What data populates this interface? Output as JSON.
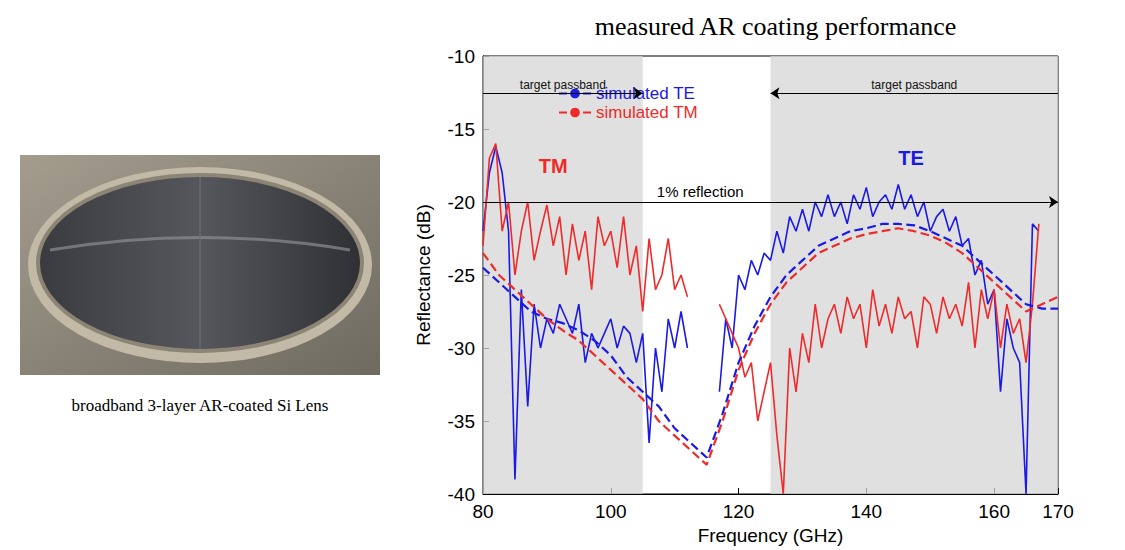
{
  "image_caption": "broadband 3-layer AR-coated Si Lens",
  "chart_data": {
    "type": "line",
    "title": "measured AR coating performance",
    "x_label": "Frequency (GHz)",
    "y_label": "Reflectance (dB)",
    "xlim": [
      80,
      170
    ],
    "xticks": [
      80,
      100,
      120,
      140,
      160
    ],
    "ylim": [
      -40,
      -10
    ],
    "yticks": [
      -40,
      -35,
      -30,
      -25,
      -20,
      -15,
      -10
    ],
    "grid": false,
    "legend": "upper left",
    "passbands": [
      {
        "label": "target passband",
        "from": 80,
        "to": 105
      },
      {
        "label": "target passband",
        "from": 125,
        "to": 170
      }
    ],
    "reference_line": {
      "value": -20,
      "label": "1% reflection",
      "label_x": 114
    },
    "series": [
      {
        "name": "simulated TE",
        "color": "#1a1ae6",
        "line_style": "dashed",
        "x": [
          80,
          82.5,
          85,
          87.5,
          90,
          92.5,
          95,
          97.5,
          100,
          102.5,
          105,
          107.5,
          110,
          112.5,
          115,
          117.5,
          120,
          122.5,
          125,
          127.5,
          130,
          132.5,
          135,
          137.5,
          140,
          142.5,
          145,
          147.5,
          150,
          152.5,
          155,
          157.5,
          160,
          162.5,
          165,
          167.5,
          170
        ],
        "values": [
          -24.5,
          -25.5,
          -26.5,
          -27.5,
          -28,
          -28.3,
          -28.8,
          -29.5,
          -30.5,
          -32,
          -33,
          -34,
          -35.5,
          -36.5,
          -37.5,
          -34.5,
          -31,
          -28.5,
          -26.5,
          -25,
          -24,
          -23,
          -22.5,
          -22,
          -21.8,
          -21.5,
          -21.5,
          -21.6,
          -22,
          -22.5,
          -23,
          -24,
          -25,
          -26,
          -27,
          -27.3,
          -27.3
        ]
      },
      {
        "name": "simulated TM",
        "color": "#ee2a2a",
        "line_style": "dashed",
        "x": [
          80,
          82.5,
          85,
          87.5,
          90,
          92.5,
          95,
          97.5,
          100,
          102.5,
          105,
          107.5,
          110,
          112.5,
          115,
          117.5,
          120,
          122.5,
          125,
          127.5,
          130,
          132.5,
          135,
          137.5,
          140,
          142.5,
          145,
          147.5,
          150,
          152.5,
          155,
          157.5,
          160,
          162.5,
          165,
          167.5,
          170
        ],
        "values": [
          -23.5,
          -25,
          -26,
          -27,
          -28,
          -28.8,
          -29.5,
          -30.5,
          -31.5,
          -32.5,
          -33.5,
          -35,
          -36,
          -37,
          -38,
          -35,
          -31.5,
          -29,
          -27,
          -25.5,
          -24.5,
          -23.5,
          -23,
          -22.5,
          -22.2,
          -22,
          -21.8,
          -22,
          -22.3,
          -22.8,
          -23.5,
          -24.5,
          -25.5,
          -26.5,
          -27.5,
          -27,
          -26.5
        ]
      },
      {
        "name": "TE",
        "color": "#1a1ae6",
        "line_style": "solid",
        "label_at": [
          147,
          -17
        ],
        "x": [
          80,
          81,
          82,
          83,
          84,
          85,
          86,
          87,
          88,
          89,
          90,
          91,
          92,
          93,
          94,
          95,
          96,
          97,
          98,
          99,
          100,
          101,
          102,
          103,
          104,
          105,
          106,
          107,
          108,
          109,
          110,
          111,
          112,
          114,
          117,
          118,
          119,
          120,
          121,
          122,
          123,
          124,
          125,
          126,
          127,
          128,
          129,
          130,
          131,
          132,
          133,
          134,
          135,
          136,
          137,
          138,
          139,
          140,
          141,
          142,
          143,
          144,
          145,
          146,
          147,
          148,
          149,
          150,
          151,
          152,
          153,
          154,
          155,
          156,
          157,
          158,
          159,
          160,
          161,
          162,
          163,
          164,
          165,
          166,
          167
        ],
        "values": [
          -22,
          -18,
          -16.2,
          -18,
          -22,
          -39,
          -26,
          -34,
          -27,
          -30,
          -28,
          -29,
          -27,
          -28,
          -29,
          -27,
          -31,
          -29,
          -30,
          -29,
          -28,
          -30,
          -28.5,
          -29,
          -31,
          -29,
          -36.5,
          -30,
          -33,
          -28,
          -30,
          -27.5,
          -30,
          null,
          -33,
          -28,
          -30,
          -25,
          -26,
          -24,
          -25,
          -23.5,
          -24,
          -22,
          -23.5,
          -21,
          -22,
          -20.5,
          -22,
          -20,
          -21,
          -19.5,
          -21,
          -20,
          -21.5,
          -19.5,
          -20.5,
          -19,
          -21,
          -20,
          -19.5,
          -20.5,
          -18.8,
          -20.5,
          -19.5,
          -21,
          -20,
          -22,
          -21,
          -20.5,
          -22,
          -21,
          -23,
          -22.5,
          -25,
          -24,
          -27,
          -26,
          -33,
          -28,
          -30,
          -31,
          -40,
          -21.5,
          -22
        ]
      },
      {
        "name": "TM",
        "color": "#ee2a2a",
        "line_style": "solid",
        "label_at": [
          91,
          -17.5
        ],
        "x": [
          80,
          81,
          82,
          83,
          84,
          85,
          86,
          87,
          88,
          89,
          90,
          91,
          92,
          93,
          94,
          95,
          96,
          97,
          98,
          99,
          100,
          101,
          102,
          103,
          104,
          105,
          106,
          107,
          108,
          109,
          110,
          111,
          112,
          114,
          117,
          118,
          119,
          120,
          121,
          122,
          123,
          124,
          125,
          126,
          127,
          128,
          129,
          130,
          131,
          132,
          133,
          134,
          135,
          136,
          137,
          138,
          139,
          140,
          141,
          142,
          143,
          144,
          145,
          146,
          147,
          148,
          149,
          150,
          151,
          152,
          153,
          154,
          155,
          156,
          157,
          158,
          159,
          160,
          161,
          162,
          163,
          164,
          165,
          166,
          167
        ],
        "values": [
          -23,
          -17,
          -16,
          -22,
          -20,
          -25,
          -22,
          -20,
          -24,
          -22,
          -20.2,
          -23,
          -21,
          -25,
          -21.5,
          -24,
          -22,
          -26,
          -21,
          -23,
          -22,
          -24.5,
          -21,
          -25,
          -23,
          -27.5,
          -22.5,
          -26,
          -25,
          -22.5,
          -26,
          -25,
          -26.5,
          null,
          -27,
          -28,
          -29,
          -30,
          -32,
          -31,
          -35,
          -33,
          -31,
          -36,
          -40,
          -30,
          -33,
          -29,
          -31,
          -27,
          -30,
          -28,
          -27,
          -29,
          -26.5,
          -28,
          -27,
          -30,
          -26,
          -28.5,
          -27,
          -29,
          -26.5,
          -28,
          -27.5,
          -30,
          -26.5,
          -27,
          -29,
          -26.5,
          -28,
          -27,
          -28.5,
          -25.5,
          -30,
          -26,
          -28,
          -26,
          -30,
          -27,
          -29,
          -28,
          -31,
          -27,
          -21.5
        ]
      }
    ]
  }
}
